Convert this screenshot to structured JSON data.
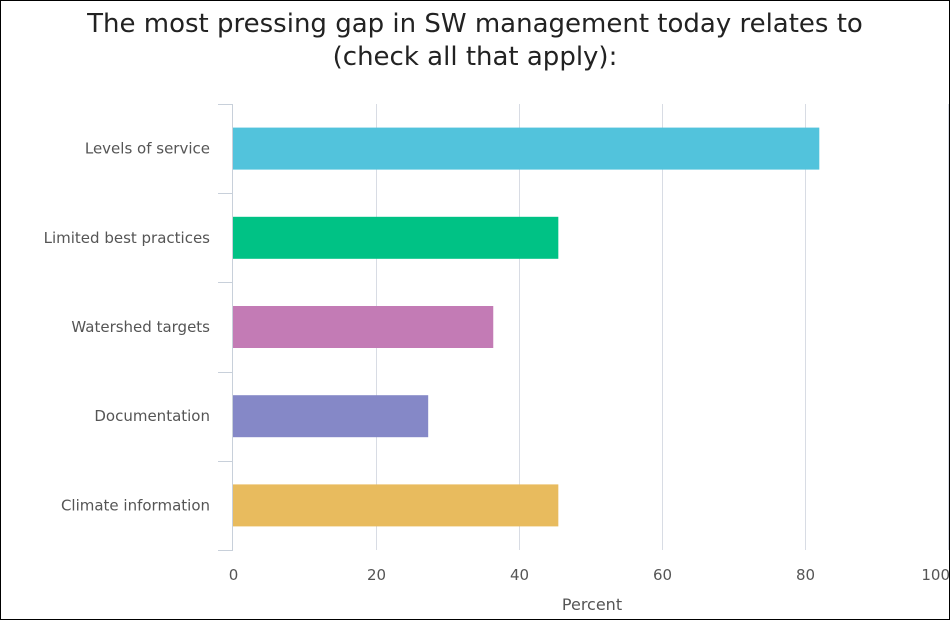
{
  "chart_data": {
    "type": "bar",
    "orientation": "horizontal",
    "title_lines": [
      "The most pressing gap in SW management today relates to",
      "(check all that apply):"
    ],
    "categories": [
      "Levels of service",
      "Limited best practices",
      "Watershed targets",
      "Documentation",
      "Climate information"
    ],
    "values": [
      82,
      45.5,
      36.4,
      27.3,
      45.5
    ],
    "colors": [
      "#52c3dc",
      "#00c285",
      "#c37bb5",
      "#8588c7",
      "#e8bb5e"
    ],
    "xlabel": "Percent",
    "xlim": [
      0,
      100
    ],
    "xticks": [
      0,
      20,
      40,
      60,
      80,
      100
    ],
    "grid": true,
    "legend": "none"
  }
}
